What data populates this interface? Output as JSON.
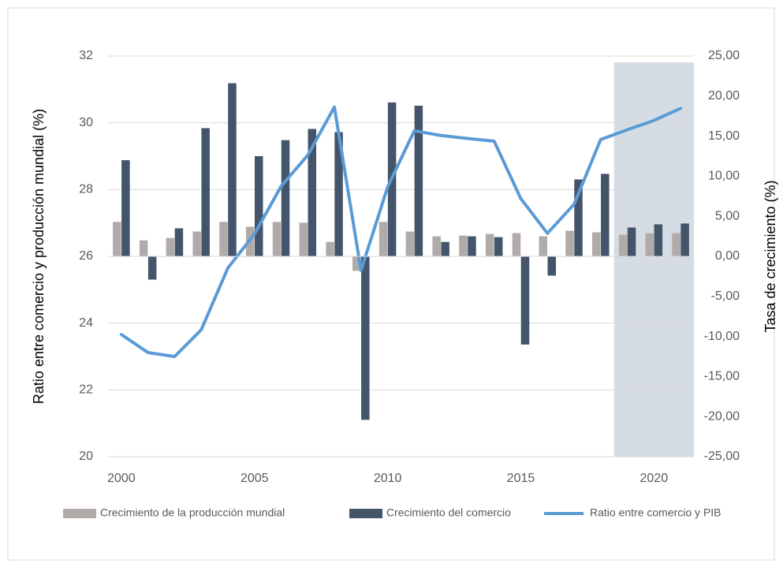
{
  "chart_data": {
    "type": "bar_line",
    "ylabel": "Ratio entre comercio y producción mundial (%)",
    "y2label": "Tasa de crecimiento (%)",
    "x": [
      2000,
      2001,
      2002,
      2003,
      2004,
      2005,
      2006,
      2007,
      2008,
      2009,
      2010,
      2011,
      2012,
      2013,
      2014,
      2015,
      2016,
      2017,
      2018,
      2019,
      2020,
      2021
    ],
    "xlim": [
      1999.5,
      2021.5
    ],
    "xticks": [
      2000,
      2005,
      2010,
      2015,
      2020
    ],
    "ylim": [
      20,
      32
    ],
    "yticks": [
      20,
      22,
      24,
      26,
      28,
      30,
      32
    ],
    "y2lim": [
      -25,
      25
    ],
    "y2ticks": [
      {
        "value": -25,
        "label": "-25,00"
      },
      {
        "value": -20,
        "label": "-20,00"
      },
      {
        "value": -15,
        "label": "-15,00"
      },
      {
        "value": -10,
        "label": "-10,00"
      },
      {
        "value": -5,
        "label": "-5,00"
      },
      {
        "value": 0,
        "label": "0,00"
      },
      {
        "value": 5,
        "label": "5,00"
      },
      {
        "value": 10,
        "label": "10,00"
      },
      {
        "value": 15,
        "label": "15,00"
      },
      {
        "value": 20,
        "label": "20,00"
      },
      {
        "value": 25,
        "label": "25,00"
      }
    ],
    "grid": true,
    "shaded_xlim": [
      2018.5,
      2021.5
    ],
    "legend": "bottom",
    "series": [
      {
        "name": "Crecimiento de la producción mundial",
        "type": "bar",
        "axis": "y2",
        "color": "#b0aba9",
        "values": [
          4.3,
          2.0,
          2.3,
          3.1,
          4.3,
          3.7,
          4.3,
          4.2,
          1.8,
          -1.8,
          4.3,
          3.1,
          2.5,
          2.6,
          2.8,
          2.9,
          2.5,
          3.2,
          3.0,
          2.7,
          2.9,
          2.9
        ]
      },
      {
        "name": "Crecimiento del comercio",
        "type": "bar",
        "axis": "y2",
        "color": "#44546a",
        "values": [
          12.0,
          -2.9,
          3.5,
          16.0,
          21.6,
          12.5,
          14.5,
          15.9,
          15.5,
          -20.4,
          19.2,
          18.8,
          1.8,
          2.5,
          2.4,
          -11.0,
          -2.4,
          9.6,
          10.3,
          3.6,
          4.0,
          4.1
        ]
      },
      {
        "name": "Ratio entre comercio y PIB",
        "type": "line",
        "color": "#5b9bd5",
        "values": [
          23.66,
          23.12,
          23.0,
          23.8,
          25.65,
          26.67,
          28.1,
          29.03,
          30.47,
          25.58,
          28.08,
          29.76,
          29.62,
          29.53,
          29.45,
          27.73,
          26.69,
          27.56,
          29.5,
          29.79,
          30.07,
          30.43
        ]
      }
    ]
  }
}
